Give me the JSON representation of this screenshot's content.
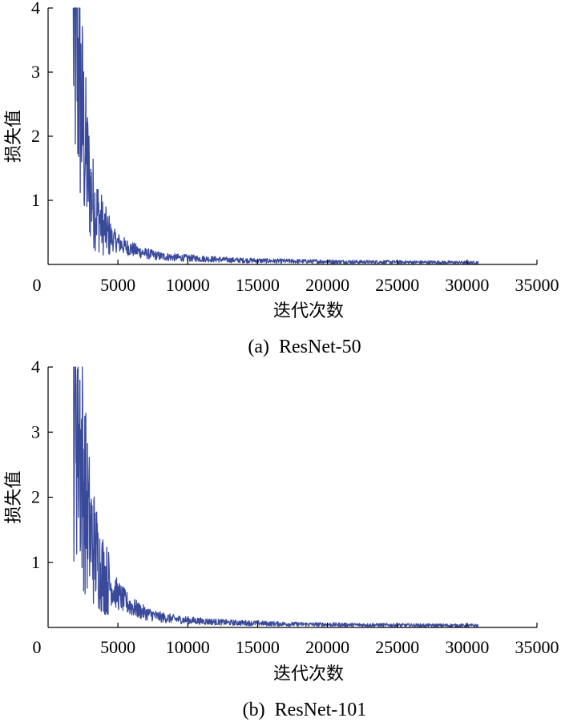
{
  "chart_data": [
    {
      "type": "line",
      "caption": "(a)  ResNet-50",
      "xlabel": "迭代次数",
      "ylabel": "损失值",
      "xlim": [
        0,
        35000
      ],
      "ylim": [
        0,
        4
      ],
      "xticks": [
        "0",
        "5000",
        "10000",
        "15000",
        "20000",
        "25000",
        "30000",
        "35000"
      ],
      "yticks": [
        "1",
        "2",
        "3",
        "4"
      ],
      "grid": false,
      "line_color": "#3a4a9a",
      "series": [
        {
          "x": [
            1800,
            2000,
            2200,
            2400,
            2600,
            2800,
            3000,
            3200,
            3400,
            3600,
            3800,
            4000,
            4300,
            4600,
            5000,
            5500,
            6000,
            6500,
            7000,
            7500,
            8000,
            9000,
            10000,
            11000,
            12000,
            13000,
            14000,
            15000,
            16000,
            18000,
            20000,
            22000,
            24000,
            26000,
            28000,
            30000,
            30800
          ],
          "y": [
            4.0,
            3.6,
            3.0,
            2.4,
            1.9,
            1.5,
            1.2,
            1.0,
            0.85,
            0.75,
            0.65,
            0.55,
            0.47,
            0.4,
            0.34,
            0.28,
            0.24,
            0.2,
            0.17,
            0.15,
            0.13,
            0.11,
            0.1,
            0.09,
            0.08,
            0.07,
            0.065,
            0.06,
            0.055,
            0.05,
            0.045,
            0.04,
            0.038,
            0.035,
            0.033,
            0.03,
            0.03
          ]
        }
      ]
    },
    {
      "type": "line",
      "caption": "(b)  ResNet-101",
      "xlabel": "迭代次数",
      "ylabel": "损失值",
      "xlim": [
        0,
        35000
      ],
      "ylim": [
        0,
        4
      ],
      "xticks": [
        "0",
        "5000",
        "10000",
        "15000",
        "20000",
        "25000",
        "30000",
        "35000"
      ],
      "yticks": [
        "1",
        "2",
        "3",
        "4"
      ],
      "grid": false,
      "line_color": "#3a4a9a",
      "series": [
        {
          "x": [
            1800,
            2000,
            2200,
            2400,
            2600,
            2800,
            3000,
            3200,
            3400,
            3600,
            3800,
            4000,
            4300,
            4600,
            5000,
            5500,
            6000,
            6500,
            7000,
            7500,
            8000,
            9000,
            10000,
            11000,
            12000,
            13000,
            14000,
            15000,
            16000,
            18000,
            20000,
            22000,
            24000,
            26000,
            28000,
            30000,
            30800
          ],
          "y": [
            4.0,
            3.7,
            3.2,
            2.6,
            2.1,
            1.75,
            1.5,
            1.3,
            1.15,
            1.0,
            0.9,
            0.8,
            0.7,
            0.6,
            0.5,
            0.4,
            0.32,
            0.26,
            0.22,
            0.19,
            0.16,
            0.13,
            0.11,
            0.095,
            0.085,
            0.075,
            0.07,
            0.065,
            0.058,
            0.05,
            0.045,
            0.04,
            0.037,
            0.034,
            0.032,
            0.03,
            0.03
          ]
        }
      ]
    }
  ]
}
